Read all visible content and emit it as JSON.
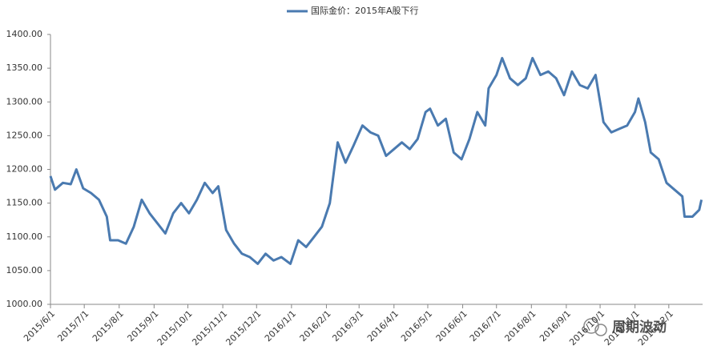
{
  "chart_data": {
    "type": "line",
    "series": [
      {
        "name": "国际金价：2015年A股下行",
        "color": "#4a7ab0",
        "x": [
          "2015/6/1",
          "2015/6/5",
          "2015/6/12",
          "2015/6/19",
          "2015/6/24",
          "2015/6/30",
          "2015/7/7",
          "2015/7/14",
          "2015/7/21",
          "2015/7/24",
          "2015/7/31",
          "2015/8/7",
          "2015/8/14",
          "2015/8/21",
          "2015/8/28",
          "2015/9/4",
          "2015/9/11",
          "2015/9/18",
          "2015/9/25",
          "2015/10/2",
          "2015/10/9",
          "2015/10/16",
          "2015/10/23",
          "2015/10/28",
          "2015/11/4",
          "2015/11/11",
          "2015/11/18",
          "2015/11/25",
          "2015/12/2",
          "2015/12/9",
          "2015/12/16",
          "2015/12/23",
          "2015/12/31",
          "2016/1/7",
          "2016/1/14",
          "2016/1/21",
          "2016/1/28",
          "2016/2/4",
          "2016/2/11",
          "2016/2/18",
          "2016/2/25",
          "2016/3/4",
          "2016/3/11",
          "2016/3/18",
          "2016/3/25",
          "2016/4/1",
          "2016/4/8",
          "2016/4/15",
          "2016/4/22",
          "2016/4/29",
          "2016/5/3",
          "2016/5/10",
          "2016/5/17",
          "2016/5/24",
          "2016/5/31",
          "2016/6/7",
          "2016/6/14",
          "2016/6/21",
          "2016/6/24",
          "2016/7/1",
          "2016/7/6",
          "2016/7/13",
          "2016/7/20",
          "2016/7/27",
          "2016/8/2",
          "2016/8/9",
          "2016/8/16",
          "2016/8/23",
          "2016/8/30",
          "2016/9/6",
          "2016/9/13",
          "2016/9/20",
          "2016/9/27",
          "2016/10/4",
          "2016/10/11",
          "2016/10/18",
          "2016/10/25",
          "2016/11/1",
          "2016/11/4",
          "2016/11/10",
          "2016/11/15",
          "2016/11/22",
          "2016/11/29",
          "2016/12/6",
          "2016/12/13",
          "2016/12/15",
          "2016/12/22",
          "2016/12/28",
          "2016/12/30"
        ],
        "values": [
          1190,
          1170,
          1180,
          1178,
          1200,
          1172,
          1165,
          1155,
          1130,
          1095,
          1095,
          1090,
          1115,
          1155,
          1135,
          1120,
          1105,
          1135,
          1150,
          1135,
          1155,
          1180,
          1165,
          1175,
          1110,
          1090,
          1075,
          1070,
          1060,
          1075,
          1065,
          1070,
          1060,
          1095,
          1085,
          1100,
          1115,
          1150,
          1240,
          1210,
          1235,
          1265,
          1255,
          1250,
          1220,
          1230,
          1240,
          1230,
          1245,
          1285,
          1290,
          1265,
          1275,
          1225,
          1215,
          1245,
          1285,
          1265,
          1320,
          1340,
          1365,
          1335,
          1325,
          1335,
          1365,
          1340,
          1345,
          1335,
          1310,
          1345,
          1325,
          1320,
          1340,
          1270,
          1255,
          1260,
          1265,
          1285,
          1305,
          1270,
          1225,
          1215,
          1180,
          1170,
          1160,
          1130,
          1130,
          1140,
          1155
        ]
      }
    ],
    "xlim": [
      "2015/6/1",
      "2016/12/31"
    ],
    "xticks": [
      "2015/6/1",
      "2015/7/1",
      "2015/8/1",
      "2015/9/1",
      "2015/10/1",
      "2015/11/1",
      "2015/12/1",
      "2016/1/1",
      "2016/2/1",
      "2016/3/1",
      "2016/4/1",
      "2016/5/1",
      "2016/6/1",
      "2016/7/1",
      "2016/8/1",
      "2016/9/1",
      "2016/10/1",
      "2016/11/1",
      "2016/12/1"
    ],
    "ylim": [
      1000,
      1400
    ],
    "yticks": [
      {
        "value": 1000,
        "label": "1000.00"
      },
      {
        "value": 1050,
        "label": "1050.00"
      },
      {
        "value": 1100,
        "label": "1100.00"
      },
      {
        "value": 1150,
        "label": "1150.00"
      },
      {
        "value": 1200,
        "label": "1200.00"
      },
      {
        "value": 1250,
        "label": "1250.00"
      },
      {
        "value": 1300,
        "label": "1300.00"
      },
      {
        "value": 1350,
        "label": "1350.00"
      },
      {
        "value": 1400,
        "label": "1400.00"
      }
    ],
    "grid": false,
    "legend": "top",
    "watermark": "周期波动"
  }
}
